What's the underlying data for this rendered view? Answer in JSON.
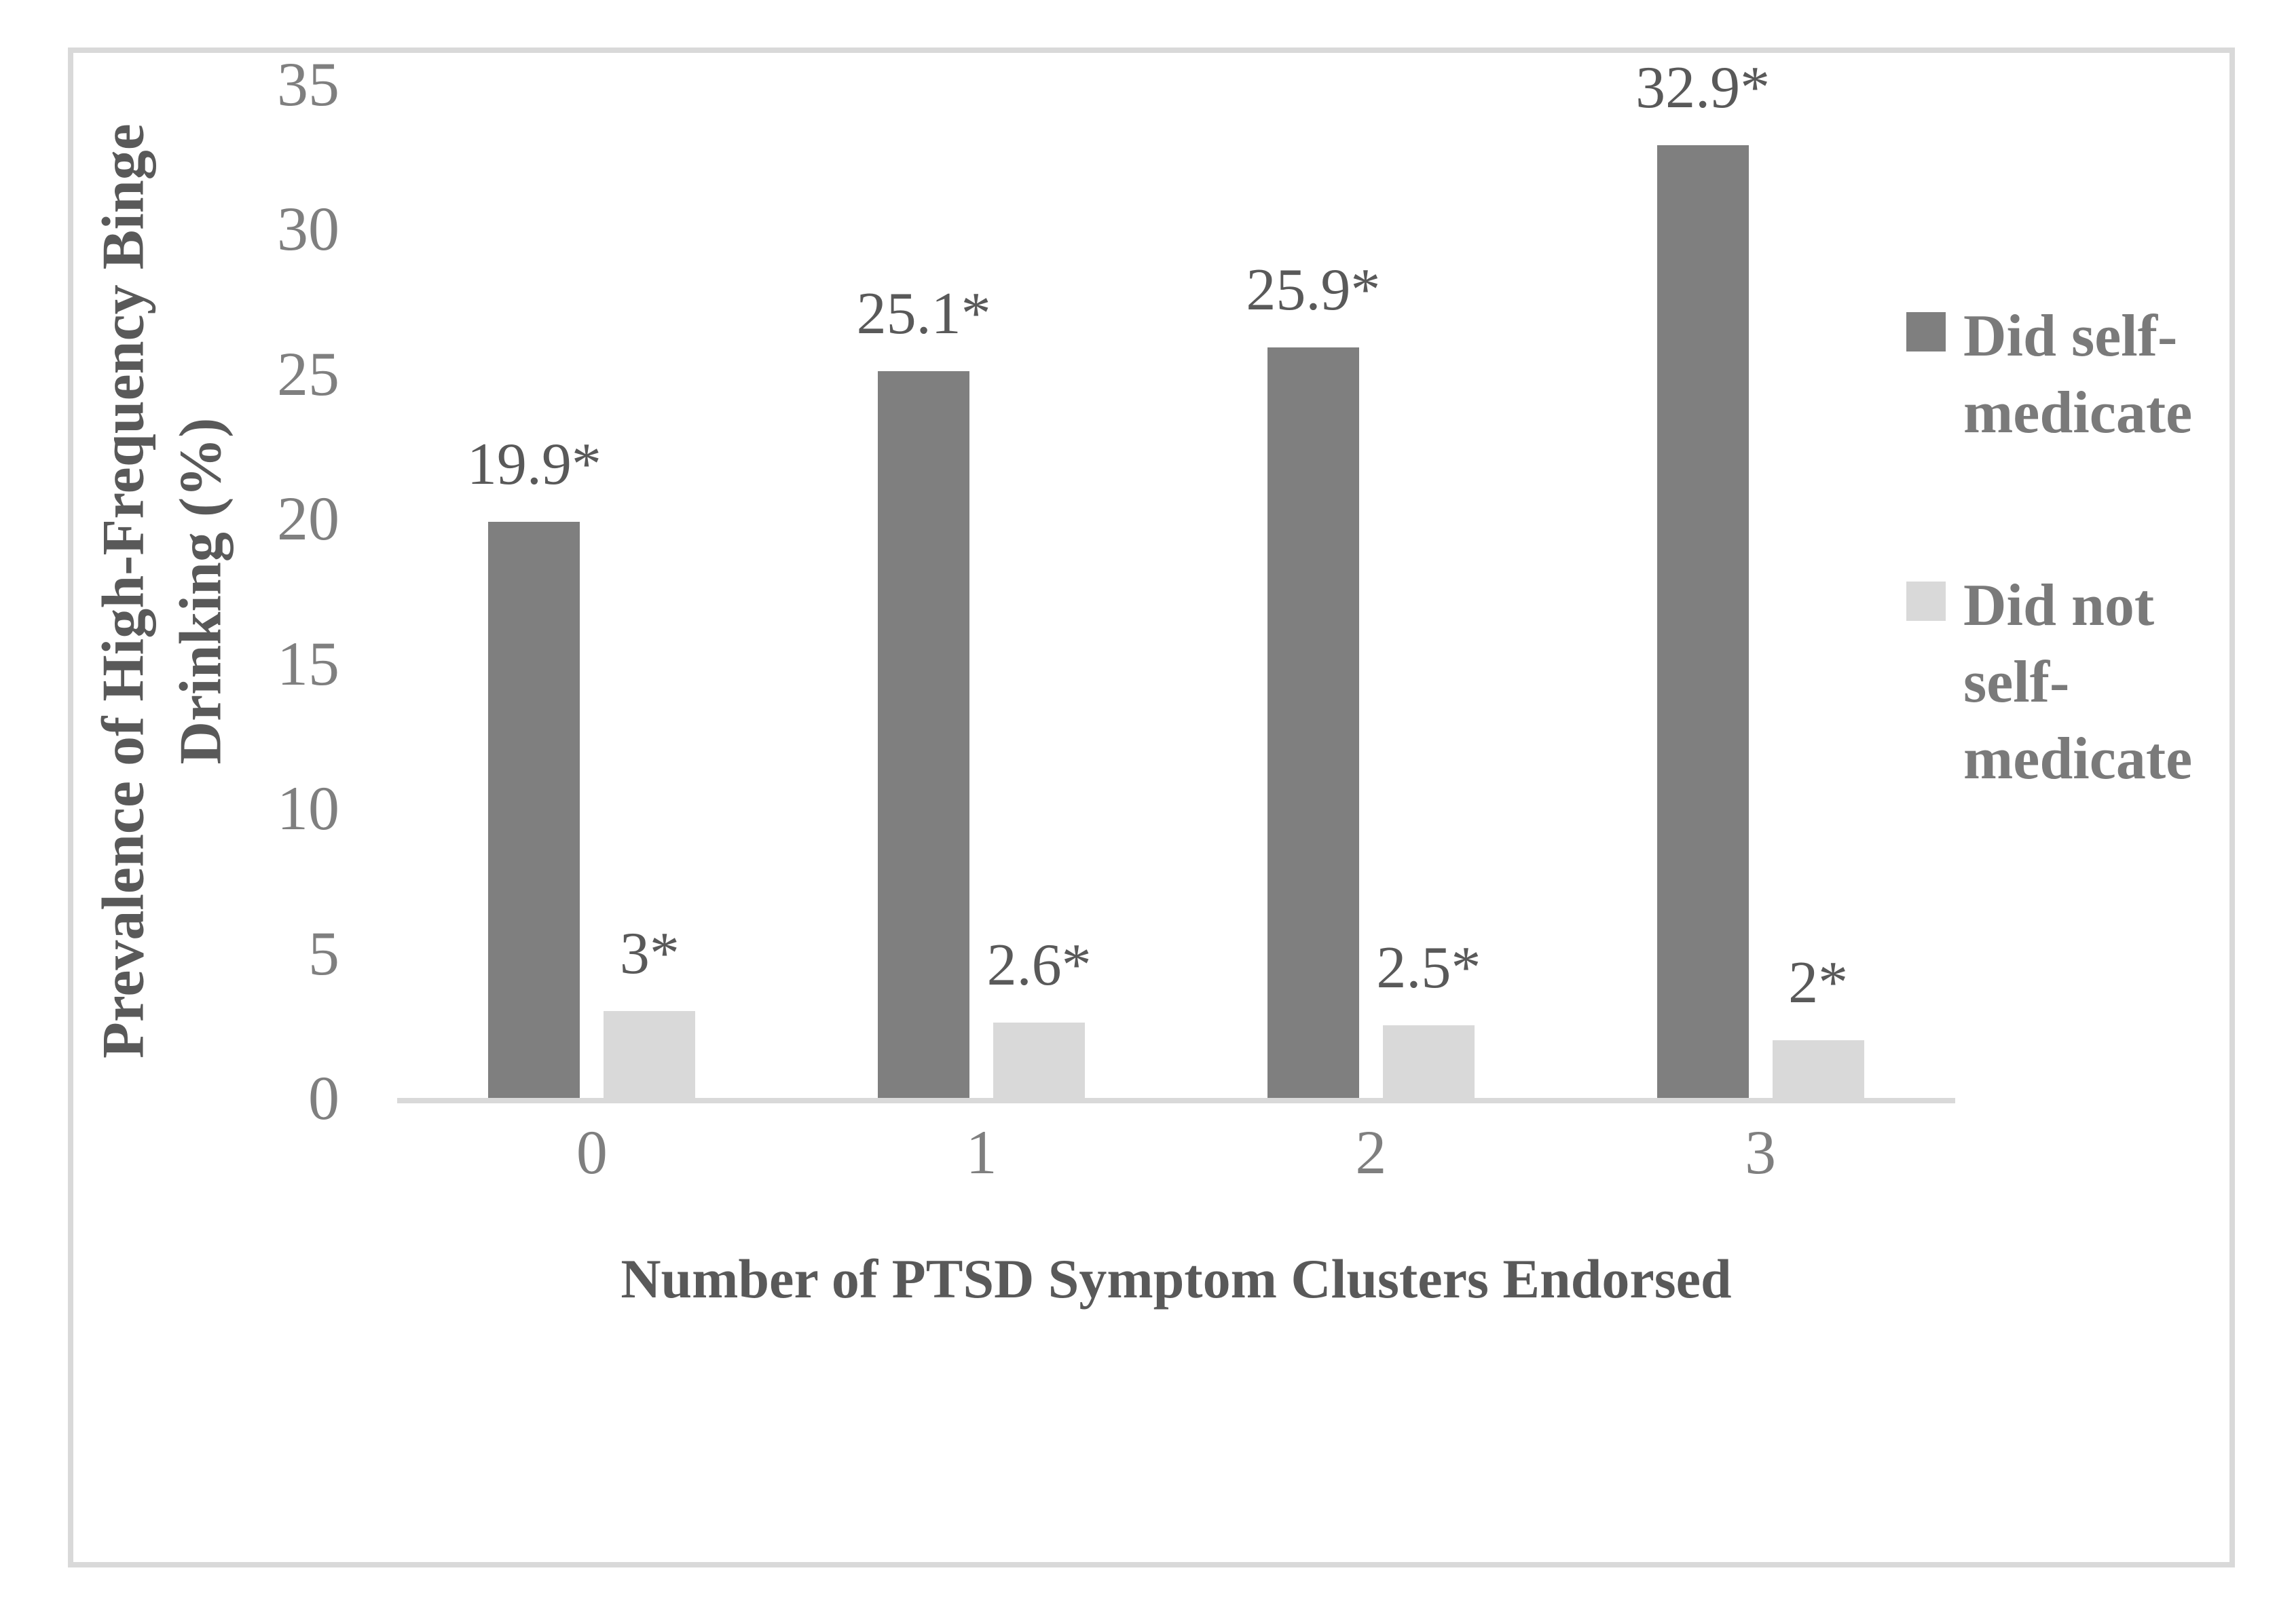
{
  "colors": {
    "series_dark": "#7f7f7f",
    "series_light": "#d9d9d9",
    "frame_border": "#d9d9d9",
    "axis_line": "#d9d9d9",
    "tick_text": "#7f7f7f",
    "data_label_text": "#595959",
    "axis_title_text": "#595959",
    "legend_text": "#7a7a7a",
    "background": "#ffffff"
  },
  "chart_data": {
    "type": "bar",
    "title": "",
    "categories": [
      "0",
      "1",
      "2",
      "3"
    ],
    "series": [
      {
        "name": "Did self-medicate",
        "color": "#7f7f7f",
        "values": [
          19.9,
          25.1,
          25.9,
          32.9
        ],
        "labels": [
          "19.9*",
          "25.1*",
          "25.9*",
          "32.9*"
        ]
      },
      {
        "name": "Did not self-medicate",
        "color": "#d9d9d9",
        "values": [
          3,
          2.6,
          2.5,
          2
        ],
        "labels": [
          "3*",
          "2.6*",
          "2.5*",
          "2*"
        ]
      }
    ],
    "xlabel": "Number of PTSD Symptom Clusters Endorsed",
    "ylabel": "Prevalence of High-Frequency Binge Drinking (%)",
    "ylabel_lines": [
      "Prevalence of High-Frequency Binge",
      "Drinking (%)"
    ],
    "ylim": [
      0,
      35
    ],
    "yticks": [
      0,
      5,
      10,
      15,
      20,
      25,
      30,
      35
    ],
    "legend_position": "right",
    "grid": false
  }
}
